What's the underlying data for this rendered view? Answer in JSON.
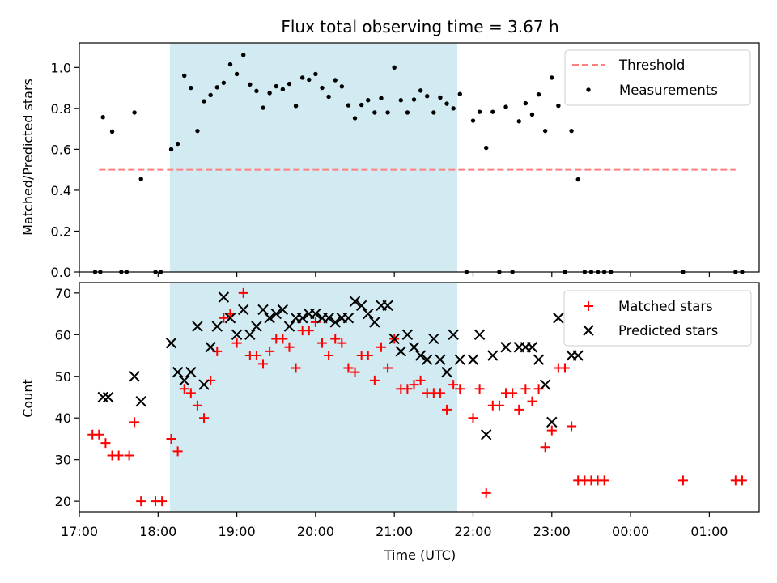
{
  "chart_data": [
    {
      "type": "scatter",
      "title": "Flux total observing time = 3.67 h",
      "xlabel": "",
      "ylabel": "Matched/Predicted stars",
      "ylim": [
        0,
        1.12
      ],
      "yticks": [
        0.0,
        0.2,
        0.4,
        0.6,
        0.8,
        1.0
      ],
      "xlim": [
        "17:00",
        "01:38"
      ],
      "shaded_interval": [
        "18:09",
        "21:48"
      ],
      "legend": {
        "placement": "upper right",
        "entries": [
          "Threshold",
          "Measurements"
        ]
      },
      "threshold": {
        "name": "Threshold",
        "y": 0.5,
        "x_start": "17:15",
        "x_end": "01:20",
        "color": "#ff7f7f",
        "style": "dashed"
      },
      "series": [
        {
          "name": "Measurements",
          "color": "#000000",
          "marker": "dot",
          "points": [
            [
              "17:12",
              0
            ],
            [
              "17:16",
              0
            ],
            [
              "17:18",
              0.757
            ],
            [
              "17:25",
              0.687
            ],
            [
              "17:32",
              0
            ],
            [
              "17:36",
              0
            ],
            [
              "17:42",
              0.78
            ],
            [
              "17:47",
              0.455
            ],
            [
              "17:58",
              0
            ],
            [
              "18:02",
              0
            ],
            [
              "18:10",
              0.6
            ],
            [
              "18:15",
              0.627
            ],
            [
              "18:20",
              0.96
            ],
            [
              "18:25",
              0.9
            ],
            [
              "18:30",
              0.69
            ],
            [
              "18:35",
              0.835
            ],
            [
              "18:40",
              0.865
            ],
            [
              "18:45",
              0.903
            ],
            [
              "18:50",
              0.925
            ],
            [
              "18:55",
              1.015
            ],
            [
              "19:00",
              0.968
            ],
            [
              "19:05",
              1.061
            ],
            [
              "19:10",
              0.917
            ],
            [
              "19:15",
              0.885
            ],
            [
              "19:20",
              0.803
            ],
            [
              "19:25",
              0.875
            ],
            [
              "19:30",
              0.908
            ],
            [
              "19:35",
              0.893
            ],
            [
              "19:40",
              0.92
            ],
            [
              "19:45",
              0.812
            ],
            [
              "19:50",
              0.95
            ],
            [
              "19:55",
              0.94
            ],
            [
              "20:00",
              0.968
            ],
            [
              "20:05",
              0.9
            ],
            [
              "20:10",
              0.857
            ],
            [
              "20:15",
              0.938
            ],
            [
              "20:20",
              0.907
            ],
            [
              "20:25",
              0.815
            ],
            [
              "20:30",
              0.752
            ],
            [
              "20:35",
              0.817
            ],
            [
              "20:40",
              0.84
            ],
            [
              "20:45",
              0.78
            ],
            [
              "20:50",
              0.85
            ],
            [
              "20:55",
              0.78
            ],
            [
              "21:00",
              1.0
            ],
            [
              "21:05",
              0.84
            ],
            [
              "21:10",
              0.78
            ],
            [
              "21:15",
              0.843
            ],
            [
              "21:20",
              0.887
            ],
            [
              "21:25",
              0.86
            ],
            [
              "21:30",
              0.78
            ],
            [
              "21:35",
              0.853
            ],
            [
              "21:40",
              0.823
            ],
            [
              "21:45",
              0.8
            ],
            [
              "21:50",
              0.87
            ],
            [
              "21:55",
              0
            ],
            [
              "22:00",
              0.74
            ],
            [
              "22:05",
              0.783
            ],
            [
              "22:10",
              0.607
            ],
            [
              "22:15",
              0.783
            ],
            [
              "22:20",
              0
            ],
            [
              "22:25",
              0.807
            ],
            [
              "22:30",
              0
            ],
            [
              "22:35",
              0.737
            ],
            [
              "22:40",
              0.825
            ],
            [
              "22:45",
              0.77
            ],
            [
              "22:50",
              0.868
            ],
            [
              "22:55",
              0.69
            ],
            [
              "23:00",
              0.95
            ],
            [
              "23:05",
              0.813
            ],
            [
              "23:10",
              0
            ],
            [
              "23:15",
              0.69
            ],
            [
              "23:20",
              0.453
            ],
            [
              "23:25",
              0
            ],
            [
              "23:30",
              0
            ],
            [
              "23:35",
              0
            ],
            [
              "23:40",
              0
            ],
            [
              "23:45",
              0
            ],
            [
              "00:40",
              0
            ],
            [
              "01:20",
              0
            ],
            [
              "01:25",
              0
            ]
          ]
        }
      ]
    },
    {
      "type": "scatter",
      "title": "",
      "xlabel": "Time (UTC)",
      "ylabel": "Count",
      "ylim": [
        17.5,
        72.5
      ],
      "yticks": [
        20,
        30,
        40,
        50,
        60,
        70
      ],
      "xlim": [
        "17:00",
        "01:38"
      ],
      "xticks": [
        "17:00",
        "18:00",
        "19:00",
        "20:00",
        "21:00",
        "22:00",
        "23:00",
        "00:00",
        "01:00"
      ],
      "shaded_interval": [
        "18:09",
        "21:48"
      ],
      "legend": {
        "placement": "upper right",
        "entries": [
          "Matched stars",
          "Predicted stars"
        ]
      },
      "series": [
        {
          "name": "Matched stars",
          "color": "#ff0000",
          "marker": "plus",
          "points": [
            [
              "17:10",
              36
            ],
            [
              "17:15",
              36
            ],
            [
              "17:20",
              34
            ],
            [
              "17:25",
              31
            ],
            [
              "17:30",
              31
            ],
            [
              "17:38",
              31
            ],
            [
              "17:42",
              39
            ],
            [
              "17:47",
              20
            ],
            [
              "17:58",
              20
            ],
            [
              "18:03",
              20
            ],
            [
              "18:10",
              35
            ],
            [
              "18:15",
              32
            ],
            [
              "18:20",
              47
            ],
            [
              "18:25",
              46
            ],
            [
              "18:30",
              43
            ],
            [
              "18:35",
              40
            ],
            [
              "18:40",
              49
            ],
            [
              "18:45",
              56
            ],
            [
              "18:50",
              64
            ],
            [
              "18:55",
              65
            ],
            [
              "19:00",
              58
            ],
            [
              "19:05",
              70
            ],
            [
              "19:10",
              55
            ],
            [
              "19:15",
              55
            ],
            [
              "19:20",
              53
            ],
            [
              "19:25",
              56
            ],
            [
              "19:30",
              59
            ],
            [
              "19:35",
              59
            ],
            [
              "19:40",
              57
            ],
            [
              "19:45",
              52
            ],
            [
              "19:50",
              61
            ],
            [
              "19:55",
              61
            ],
            [
              "20:00",
              63
            ],
            [
              "20:05",
              58
            ],
            [
              "20:10",
              55
            ],
            [
              "20:15",
              59
            ],
            [
              "20:20",
              58
            ],
            [
              "20:25",
              52
            ],
            [
              "20:30",
              51
            ],
            [
              "20:35",
              55
            ],
            [
              "20:40",
              55
            ],
            [
              "20:45",
              49
            ],
            [
              "20:50",
              57
            ],
            [
              "20:55",
              52
            ],
            [
              "21:00",
              59
            ],
            [
              "21:05",
              47
            ],
            [
              "21:10",
              47
            ],
            [
              "21:15",
              48
            ],
            [
              "21:20",
              49
            ],
            [
              "21:25",
              46
            ],
            [
              "21:30",
              46
            ],
            [
              "21:35",
              46
            ],
            [
              "21:40",
              42
            ],
            [
              "21:45",
              48
            ],
            [
              "21:50",
              47
            ],
            [
              "22:00",
              40
            ],
            [
              "22:05",
              47
            ],
            [
              "22:10",
              22
            ],
            [
              "22:15",
              43
            ],
            [
              "22:20",
              43
            ],
            [
              "22:25",
              46
            ],
            [
              "22:30",
              46
            ],
            [
              "22:35",
              42
            ],
            [
              "22:40",
              47
            ],
            [
              "22:45",
              44
            ],
            [
              "22:50",
              47
            ],
            [
              "22:55",
              33
            ],
            [
              "23:00",
              37
            ],
            [
              "23:05",
              52
            ],
            [
              "23:10",
              52
            ],
            [
              "23:15",
              38
            ],
            [
              "23:20",
              25
            ],
            [
              "23:25",
              25
            ],
            [
              "23:30",
              25
            ],
            [
              "23:35",
              25
            ],
            [
              "23:40",
              25
            ],
            [
              "00:40",
              25
            ],
            [
              "01:20",
              25
            ],
            [
              "01:25",
              25
            ]
          ]
        },
        {
          "name": "Predicted stars",
          "color": "#000000",
          "marker": "x",
          "points": [
            [
              "17:18",
              45
            ],
            [
              "17:22",
              45
            ],
            [
              "17:42",
              50
            ],
            [
              "17:47",
              44
            ],
            [
              "18:10",
              58
            ],
            [
              "18:15",
              51
            ],
            [
              "18:20",
              49
            ],
            [
              "18:25",
              51
            ],
            [
              "18:30",
              62
            ],
            [
              "18:35",
              48
            ],
            [
              "18:40",
              57
            ],
            [
              "18:45",
              62
            ],
            [
              "18:50",
              69
            ],
            [
              "18:55",
              64
            ],
            [
              "19:00",
              60
            ],
            [
              "19:05",
              66
            ],
            [
              "19:10",
              60
            ],
            [
              "19:15",
              62
            ],
            [
              "19:20",
              66
            ],
            [
              "19:25",
              64
            ],
            [
              "19:30",
              65
            ],
            [
              "19:35",
              66
            ],
            [
              "19:40",
              62
            ],
            [
              "19:45",
              64
            ],
            [
              "19:50",
              64
            ],
            [
              "19:55",
              65
            ],
            [
              "20:00",
              65
            ],
            [
              "20:05",
              64
            ],
            [
              "20:10",
              64
            ],
            [
              "20:15",
              63
            ],
            [
              "20:20",
              64
            ],
            [
              "20:25",
              64
            ],
            [
              "20:30",
              68
            ],
            [
              "20:35",
              67
            ],
            [
              "20:40",
              65
            ],
            [
              "20:45",
              63
            ],
            [
              "20:50",
              67
            ],
            [
              "20:55",
              67
            ],
            [
              "21:00",
              59
            ],
            [
              "21:05",
              56
            ],
            [
              "21:10",
              60
            ],
            [
              "21:15",
              57
            ],
            [
              "21:20",
              55
            ],
            [
              "21:25",
              54
            ],
            [
              "21:30",
              59
            ],
            [
              "21:35",
              54
            ],
            [
              "21:40",
              51
            ],
            [
              "21:45",
              60
            ],
            [
              "21:50",
              54
            ],
            [
              "22:00",
              54
            ],
            [
              "22:05",
              60
            ],
            [
              "22:10",
              36
            ],
            [
              "22:15",
              55
            ],
            [
              "22:25",
              57
            ],
            [
              "22:35",
              57
            ],
            [
              "22:40",
              57
            ],
            [
              "22:45",
              57
            ],
            [
              "22:50",
              54
            ],
            [
              "22:55",
              48
            ],
            [
              "23:00",
              39
            ],
            [
              "23:05",
              64
            ],
            [
              "23:15",
              55
            ],
            [
              "23:20",
              55
            ]
          ]
        }
      ]
    }
  ]
}
